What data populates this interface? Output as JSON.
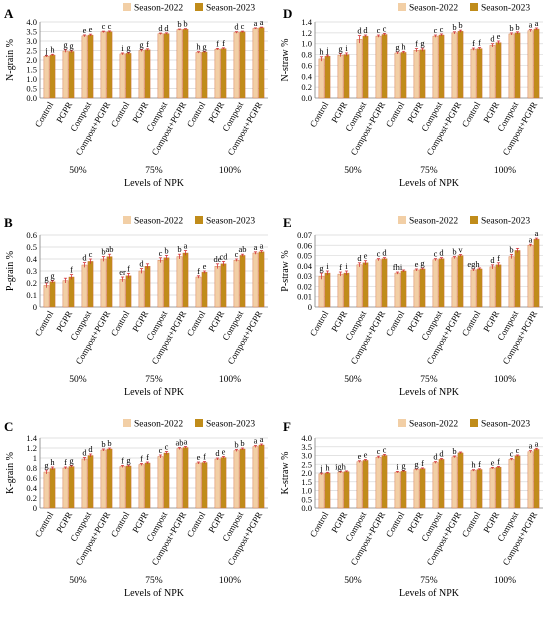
{
  "figure": {
    "legend": {
      "series": [
        "Season-2022",
        "Season-2023"
      ]
    },
    "colors": {
      "s2022": "#F2CFA6",
      "s2023": "#C08C1A",
      "bar_edge": "#D2693C",
      "error": "#D2373C",
      "grid": "#D9D9D9",
      "axis": "#808080"
    }
  },
  "chart_data": [
    {
      "panel": "A",
      "type": "bar",
      "ylabel": "N-grain %",
      "xlabel": "Levels of NPK",
      "ylim": [
        0,
        4.0
      ],
      "yticks": [
        "0.0",
        "0.5",
        "1.0",
        "1.5",
        "2.0",
        "2.5",
        "3.0",
        "3.5",
        "4.0"
      ],
      "groups": [
        "50%",
        "75%",
        "100%"
      ],
      "categories": [
        "Control",
        "PGPR",
        "Compost",
        "Compost+PGPR",
        "Control",
        "PGPR",
        "Compost",
        "Compost+PGPR",
        "Control",
        "PGPR",
        "Compost",
        "Compost+PGPR"
      ],
      "series": [
        {
          "name": "Season-2022",
          "values": [
            2.2,
            2.47,
            3.27,
            3.48,
            2.32,
            2.5,
            3.38,
            3.6,
            2.4,
            2.57,
            3.45,
            3.66
          ],
          "errors": [
            0.04,
            0.07,
            0.05,
            0.04,
            0.05,
            0.05,
            0.04,
            0.03,
            0.04,
            0.04,
            0.04,
            0.03
          ]
        },
        {
          "name": "Season-2023",
          "values": [
            2.26,
            2.45,
            3.31,
            3.49,
            2.35,
            2.54,
            3.39,
            3.62,
            2.42,
            2.6,
            3.48,
            3.7
          ],
          "errors": [
            0.04,
            0.06,
            0.05,
            0.04,
            0.05,
            0.05,
            0.04,
            0.03,
            0.04,
            0.04,
            0.04,
            0.03
          ]
        }
      ],
      "letters": [
        [
          "j",
          "h"
        ],
        [
          "g",
          "g"
        ],
        [
          "e",
          "e"
        ],
        [
          "c",
          "c"
        ],
        [
          "i",
          "g"
        ],
        [
          "g",
          "f"
        ],
        [
          "d",
          "d"
        ],
        [
          "b",
          "b"
        ],
        [
          "h",
          "g"
        ],
        [
          "f",
          "f"
        ],
        [
          "d",
          "c"
        ],
        [
          "a",
          "a"
        ]
      ]
    },
    {
      "panel": "B",
      "type": "bar",
      "ylabel": "P-grain %",
      "xlabel": "Levels of NPK",
      "ylim": [
        0,
        0.6
      ],
      "yticks": [
        "0",
        "0.1",
        "0.2",
        "0.3",
        "0.4",
        "0.5",
        "0.6"
      ],
      "groups": [
        "50%",
        "75%",
        "100%"
      ],
      "categories": [
        "Control",
        "PGPR",
        "Compost",
        "Compost+PGPR",
        "Control",
        "PGPR",
        "Compost",
        "Compost+PGPR",
        "Control",
        "PGPR",
        "Compost",
        "Compost+PGPR"
      ],
      "series": [
        {
          "name": "Season-2022",
          "values": [
            0.18,
            0.22,
            0.35,
            0.4,
            0.23,
            0.3,
            0.39,
            0.42,
            0.25,
            0.34,
            0.39,
            0.45
          ],
          "errors": [
            0.02,
            0.02,
            0.02,
            0.02,
            0.02,
            0.02,
            0.02,
            0.02,
            0.01,
            0.02,
            0.01,
            0.01
          ]
        },
        {
          "name": "Season-2023",
          "values": [
            0.21,
            0.25,
            0.38,
            0.42,
            0.26,
            0.34,
            0.41,
            0.45,
            0.29,
            0.36,
            0.43,
            0.46
          ],
          "errors": [
            0.01,
            0.02,
            0.02,
            0.02,
            0.02,
            0.02,
            0.02,
            0.02,
            0.01,
            0.02,
            0.01,
            0.01
          ]
        }
      ],
      "letters": [
        [
          "g",
          "g"
        ],
        [
          "",
          "f"
        ],
        [
          "d",
          "c"
        ],
        [
          "b",
          "ab"
        ],
        [
          "er",
          "f"
        ],
        [
          "d",
          ""
        ],
        [
          "c",
          "b"
        ],
        [
          "b",
          "a"
        ],
        [
          "f",
          "e"
        ],
        [
          "de",
          "cd"
        ],
        [
          "c",
          "ab"
        ],
        [
          "a",
          "a"
        ]
      ]
    },
    {
      "panel": "C",
      "type": "bar",
      "ylabel": "K-grain %",
      "xlabel": "Levels of NPK",
      "ylim": [
        0,
        1.4
      ],
      "yticks": [
        "0",
        "0.2",
        "0.4",
        "0.6",
        "0.8",
        "1",
        "1.2",
        "1.4"
      ],
      "groups": [
        "50%",
        "75%",
        "100%"
      ],
      "categories": [
        "Control",
        "PGPR",
        "Compost",
        "Compost+PGPR",
        "Control",
        "PGPR",
        "Compost",
        "Compost+PGPR",
        "Control",
        "PGPR",
        "Compost",
        "Compost+PGPR"
      ],
      "series": [
        {
          "name": "Season-2022",
          "values": [
            0.72,
            0.8,
            0.98,
            1.16,
            0.83,
            0.87,
            1.03,
            1.19,
            0.9,
            0.98,
            1.15,
            1.23
          ],
          "errors": [
            0.04,
            0.02,
            0.03,
            0.02,
            0.02,
            0.02,
            0.03,
            0.02,
            0.02,
            0.02,
            0.02,
            0.02
          ]
        },
        {
          "name": "Season-2023",
          "values": [
            0.79,
            0.83,
            1.05,
            1.18,
            0.84,
            0.9,
            1.1,
            1.21,
            0.91,
            1.01,
            1.18,
            1.26
          ],
          "errors": [
            0.03,
            0.02,
            0.03,
            0.02,
            0.02,
            0.02,
            0.03,
            0.02,
            0.02,
            0.02,
            0.02,
            0.02
          ]
        }
      ],
      "letters": [
        [
          "g",
          "h"
        ],
        [
          "f",
          "g"
        ],
        [
          "d",
          "d"
        ],
        [
          "b",
          "b"
        ],
        [
          "f",
          "g"
        ],
        [
          "f",
          "f"
        ],
        [
          "c",
          "c"
        ],
        [
          "ab",
          "a"
        ],
        [
          "e",
          "f"
        ],
        [
          "d",
          "e"
        ],
        [
          "b",
          "b"
        ],
        [
          "a",
          "a"
        ]
      ]
    },
    {
      "panel": "D",
      "type": "bar",
      "ylabel": "N-straw %",
      "xlabel": "Levels of NPK",
      "ylim": [
        0,
        1.4
      ],
      "yticks": [
        "0.0",
        "0.2",
        "0.4",
        "0.6",
        "0.8",
        "1.0",
        "1.2",
        "1.4"
      ],
      "groups": [
        "50%",
        "75%",
        "100%"
      ],
      "categories": [
        "Control",
        "PGPR",
        "Compost",
        "Compost+PGPR",
        "Control",
        "PGPR",
        "Compost",
        "Compost+PGPR",
        "Control",
        "PGPR",
        "Compost",
        "Compost+PGPR"
      ],
      "series": [
        {
          "name": "Season-2022",
          "values": [
            0.72,
            0.79,
            1.08,
            1.14,
            0.83,
            0.88,
            1.14,
            1.2,
            0.9,
            0.97,
            1.18,
            1.24
          ],
          "errors": [
            0.04,
            0.03,
            0.07,
            0.02,
            0.02,
            0.03,
            0.02,
            0.02,
            0.02,
            0.03,
            0.02,
            0.02
          ]
        },
        {
          "name": "Season-2023",
          "values": [
            0.77,
            0.8,
            1.14,
            1.17,
            0.84,
            0.89,
            1.16,
            1.23,
            0.91,
            1.02,
            1.2,
            1.27
          ],
          "errors": [
            0.02,
            0.03,
            0.02,
            0.02,
            0.02,
            0.03,
            0.02,
            0.02,
            0.02,
            0.03,
            0.02,
            0.02
          ]
        }
      ],
      "letters": [
        [
          "h",
          "j"
        ],
        [
          "g",
          "i"
        ],
        [
          "d",
          "d"
        ],
        [
          "c",
          "c"
        ],
        [
          "g",
          "h"
        ],
        [
          "f",
          "g"
        ],
        [
          "c",
          "c"
        ],
        [
          "b",
          "b"
        ],
        [
          "f",
          "f"
        ],
        [
          "d",
          "e"
        ],
        [
          "b",
          "b"
        ],
        [
          "a",
          "a"
        ]
      ]
    },
    {
      "panel": "E",
      "type": "bar",
      "ylabel": "P-straw %",
      "xlabel": "Levels of NPK",
      "ylim": [
        0,
        0.07
      ],
      "yticks": [
        "0",
        "0.01",
        "0.02",
        "0.03",
        "0.04",
        "0.05",
        "0.06",
        "0.07"
      ],
      "groups": [
        "50%",
        "75%",
        "100%"
      ],
      "categories": [
        "Control",
        "PGPR",
        "Compost",
        "Compost+PGPR",
        "Control",
        "PGPR",
        "Compost",
        "Compost+PGPR",
        "Control",
        "PGPR",
        "Compost",
        "Compost+PGPR"
      ],
      "series": [
        {
          "name": "Season-2022",
          "values": [
            0.03,
            0.032,
            0.041,
            0.046,
            0.033,
            0.036,
            0.046,
            0.048,
            0.036,
            0.039,
            0.049,
            0.06
          ],
          "errors": [
            0.003,
            0.002,
            0.002,
            0.001,
            0.001,
            0.001,
            0.001,
            0.001,
            0.001,
            0.002,
            0.002,
            0.001
          ]
        },
        {
          "name": "Season-2023",
          "values": [
            0.033,
            0.033,
            0.043,
            0.047,
            0.035,
            0.037,
            0.047,
            0.05,
            0.037,
            0.041,
            0.055,
            0.066
          ],
          "errors": [
            0.002,
            0.002,
            0.002,
            0.001,
            0.001,
            0.001,
            0.001,
            0.001,
            0.001,
            0.002,
            0.002,
            0.001
          ]
        }
      ],
      "letters": [
        [
          "g",
          "i"
        ],
        [
          "f",
          "i"
        ],
        [
          "d",
          "e"
        ],
        [
          "c",
          "d"
        ],
        [
          "fhi",
          ""
        ],
        [
          "e",
          "g"
        ],
        [
          "c",
          "d"
        ],
        [
          "b",
          "v"
        ],
        [
          "egh",
          ""
        ],
        [
          "d",
          "f"
        ],
        [
          "b",
          ""
        ],
        [
          "a",
          "a"
        ]
      ]
    },
    {
      "panel": "F",
      "type": "bar",
      "ylabel": "K-straw %",
      "xlabel": "Levels of NPK",
      "ylim": [
        0,
        4.0
      ],
      "yticks": [
        "0.0",
        "0.5",
        "1.0",
        "1.5",
        "2.0",
        "2.5",
        "3.0",
        "3.5",
        "4.0"
      ],
      "groups": [
        "50%",
        "75%",
        "100%"
      ],
      "categories": [
        "Control",
        "PGPR",
        "Compost",
        "Compost+PGPR",
        "Control",
        "PGPR",
        "Compost",
        "Compost+PGPR",
        "Control",
        "PGPR",
        "Compost",
        "Compost+PGPR"
      ],
      "series": [
        {
          "name": "Season-2022",
          "values": [
            1.95,
            2.05,
            2.65,
            2.9,
            2.05,
            2.2,
            2.6,
            2.92,
            2.15,
            2.28,
            2.78,
            3.22
          ],
          "errors": [
            0.05,
            0.04,
            0.05,
            0.06,
            0.04,
            0.04,
            0.05,
            0.05,
            0.04,
            0.04,
            0.05,
            0.06
          ]
        },
        {
          "name": "Season-2023",
          "values": [
            2.0,
            2.08,
            2.72,
            3.0,
            2.1,
            2.25,
            2.78,
            3.15,
            2.2,
            2.33,
            2.98,
            3.35
          ],
          "errors": [
            0.04,
            0.04,
            0.05,
            0.06,
            0.04,
            0.04,
            0.05,
            0.05,
            0.04,
            0.04,
            0.05,
            0.06
          ]
        }
      ],
      "letters": [
        [
          "j",
          "h"
        ],
        [
          "igh",
          ""
        ],
        [
          "e",
          "e"
        ],
        [
          "c",
          "c"
        ],
        [
          "i",
          "g"
        ],
        [
          "g",
          "f"
        ],
        [
          "d",
          "d"
        ],
        [
          "b",
          ""
        ],
        [
          "h",
          "f"
        ],
        [
          "e",
          "f"
        ],
        [
          "c",
          "c"
        ],
        [
          "a",
          "a"
        ]
      ]
    }
  ]
}
